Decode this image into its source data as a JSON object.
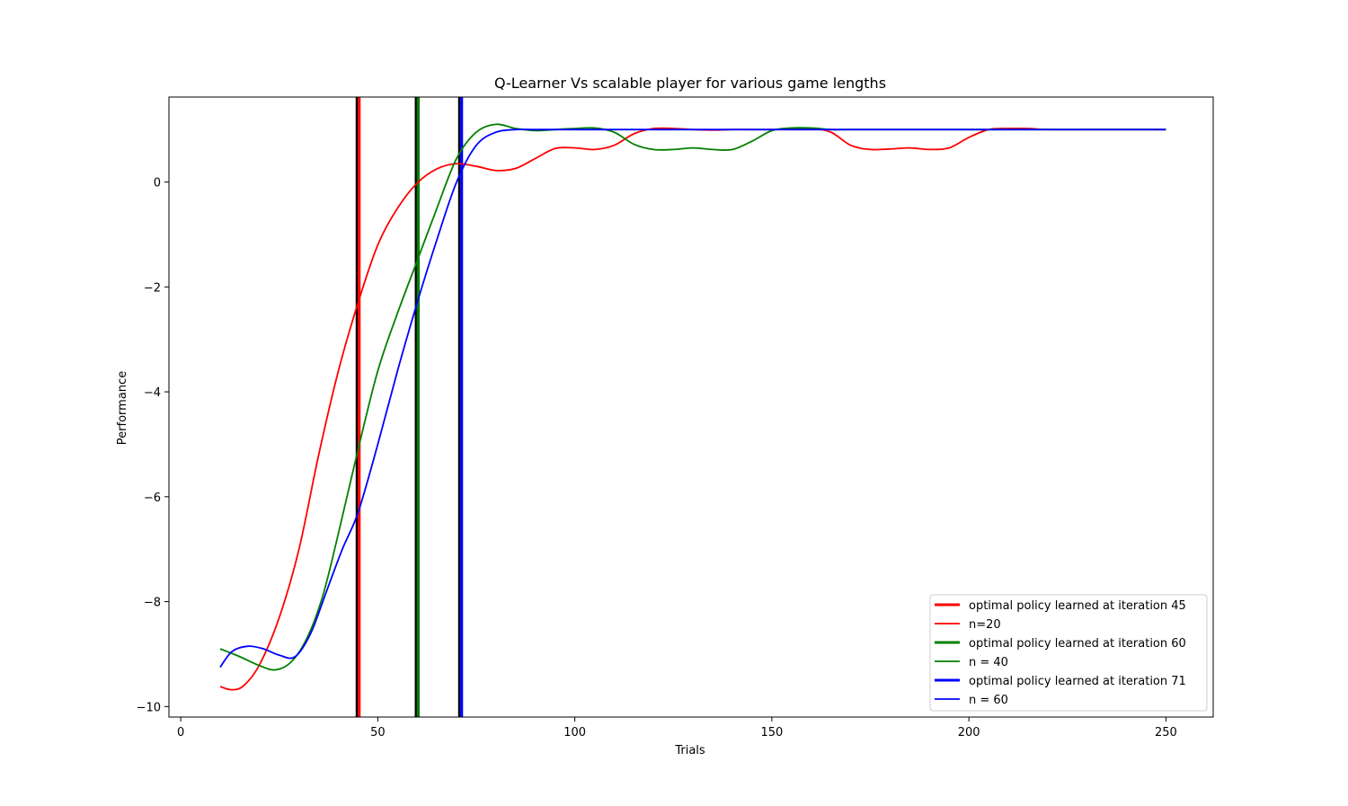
{
  "chart_data": {
    "type": "line",
    "title": "Q-Learner Vs scalable player for various game lengths",
    "xlabel": "Trials",
    "ylabel": "Performance",
    "xlim": [
      -3,
      262
    ],
    "ylim": [
      -10.2,
      1.62
    ],
    "xticks": [
      0,
      50,
      100,
      150,
      200,
      250
    ],
    "yticks": [
      -10,
      -8,
      -6,
      -4,
      -2,
      0
    ],
    "ytick_labels": [
      "−10",
      "−8",
      "−6",
      "−4",
      "−2",
      "0"
    ],
    "grid": false,
    "legend_position": "lower right",
    "vlines": [
      {
        "x": 45,
        "color": "#ff0000",
        "label": "optimal policy learned at iteration 45"
      },
      {
        "x": 60,
        "color": "#008000",
        "label": "optimal policy learned at iteration 60"
      },
      {
        "x": 71,
        "color": "#0000ff",
        "label": "optimal policy learned at iteration 71"
      }
    ],
    "series": [
      {
        "name": "n=20",
        "color": "#ff0000",
        "x": [
          10,
          13,
          16,
          20,
          25,
          30,
          35,
          40,
          45,
          50,
          55,
          60,
          65,
          70,
          75,
          80,
          85,
          90,
          95,
          100,
          105,
          110,
          115,
          120,
          125,
          130,
          135,
          140,
          145,
          150,
          155,
          160,
          165,
          170,
          175,
          180,
          185,
          190,
          195,
          200,
          205,
          210,
          215,
          220,
          230,
          240,
          250
        ],
        "y": [
          -9.62,
          -9.68,
          -9.6,
          -9.2,
          -8.3,
          -7.0,
          -5.2,
          -3.6,
          -2.3,
          -1.2,
          -0.5,
          -0.02,
          0.25,
          0.35,
          0.3,
          0.22,
          0.26,
          0.45,
          0.64,
          0.65,
          0.62,
          0.7,
          0.92,
          1.02,
          1.02,
          1.0,
          0.99,
          1.0,
          1.0,
          1.0,
          1.02,
          1.02,
          0.95,
          0.7,
          0.62,
          0.63,
          0.65,
          0.62,
          0.65,
          0.85,
          1.0,
          1.02,
          1.02,
          1.0,
          1.0,
          1.0,
          1.0
        ]
      },
      {
        "name": "n = 40",
        "color": "#008000",
        "x": [
          10,
          15,
          20,
          24,
          28,
          32,
          36,
          40,
          45,
          50,
          55,
          60,
          65,
          70,
          75,
          80,
          85,
          90,
          95,
          100,
          105,
          110,
          115,
          120,
          125,
          130,
          135,
          140,
          145,
          150,
          155,
          160,
          165,
          170,
          180,
          200,
          220,
          250
        ],
        "y": [
          -8.9,
          -9.05,
          -9.22,
          -9.3,
          -9.15,
          -8.7,
          -7.9,
          -6.7,
          -5.1,
          -3.6,
          -2.5,
          -1.5,
          -0.5,
          0.45,
          0.95,
          1.1,
          1.02,
          0.98,
          1.0,
          1.02,
          1.03,
          0.95,
          0.72,
          0.62,
          0.62,
          0.65,
          0.62,
          0.62,
          0.78,
          0.98,
          1.03,
          1.03,
          1.0,
          1.0,
          1.0,
          1.0,
          1.0,
          1.0
        ]
      },
      {
        "name": "n = 60",
        "color": "#0000ff",
        "x": [
          10,
          13,
          17,
          21,
          25,
          29,
          33,
          37,
          41,
          45,
          50,
          55,
          60,
          65,
          70,
          75,
          80,
          85,
          90,
          100,
          110,
          120,
          140,
          160,
          180,
          200,
          220,
          250
        ],
        "y": [
          -9.25,
          -8.95,
          -8.85,
          -8.9,
          -9.02,
          -9.05,
          -8.6,
          -7.8,
          -7.0,
          -6.3,
          -5.0,
          -3.6,
          -2.3,
          -1.1,
          0.0,
          0.7,
          0.95,
          1.0,
          1.0,
          1.0,
          1.0,
          1.0,
          1.0,
          1.0,
          1.0,
          1.0,
          1.0,
          1.0
        ]
      }
    ],
    "legend": [
      {
        "label": "optimal policy learned at iteration 45",
        "color": "#ff0000",
        "bold": true
      },
      {
        "label": "n=20",
        "color": "#ff0000",
        "bold": false
      },
      {
        "label": "optimal policy learned at iteration 60",
        "color": "#008000",
        "bold": true
      },
      {
        "label": "n = 40",
        "color": "#008000",
        "bold": false
      },
      {
        "label": "optimal policy learned at iteration 71",
        "color": "#0000ff",
        "bold": true
      },
      {
        "label": "n = 60",
        "color": "#0000ff",
        "bold": false
      }
    ]
  }
}
